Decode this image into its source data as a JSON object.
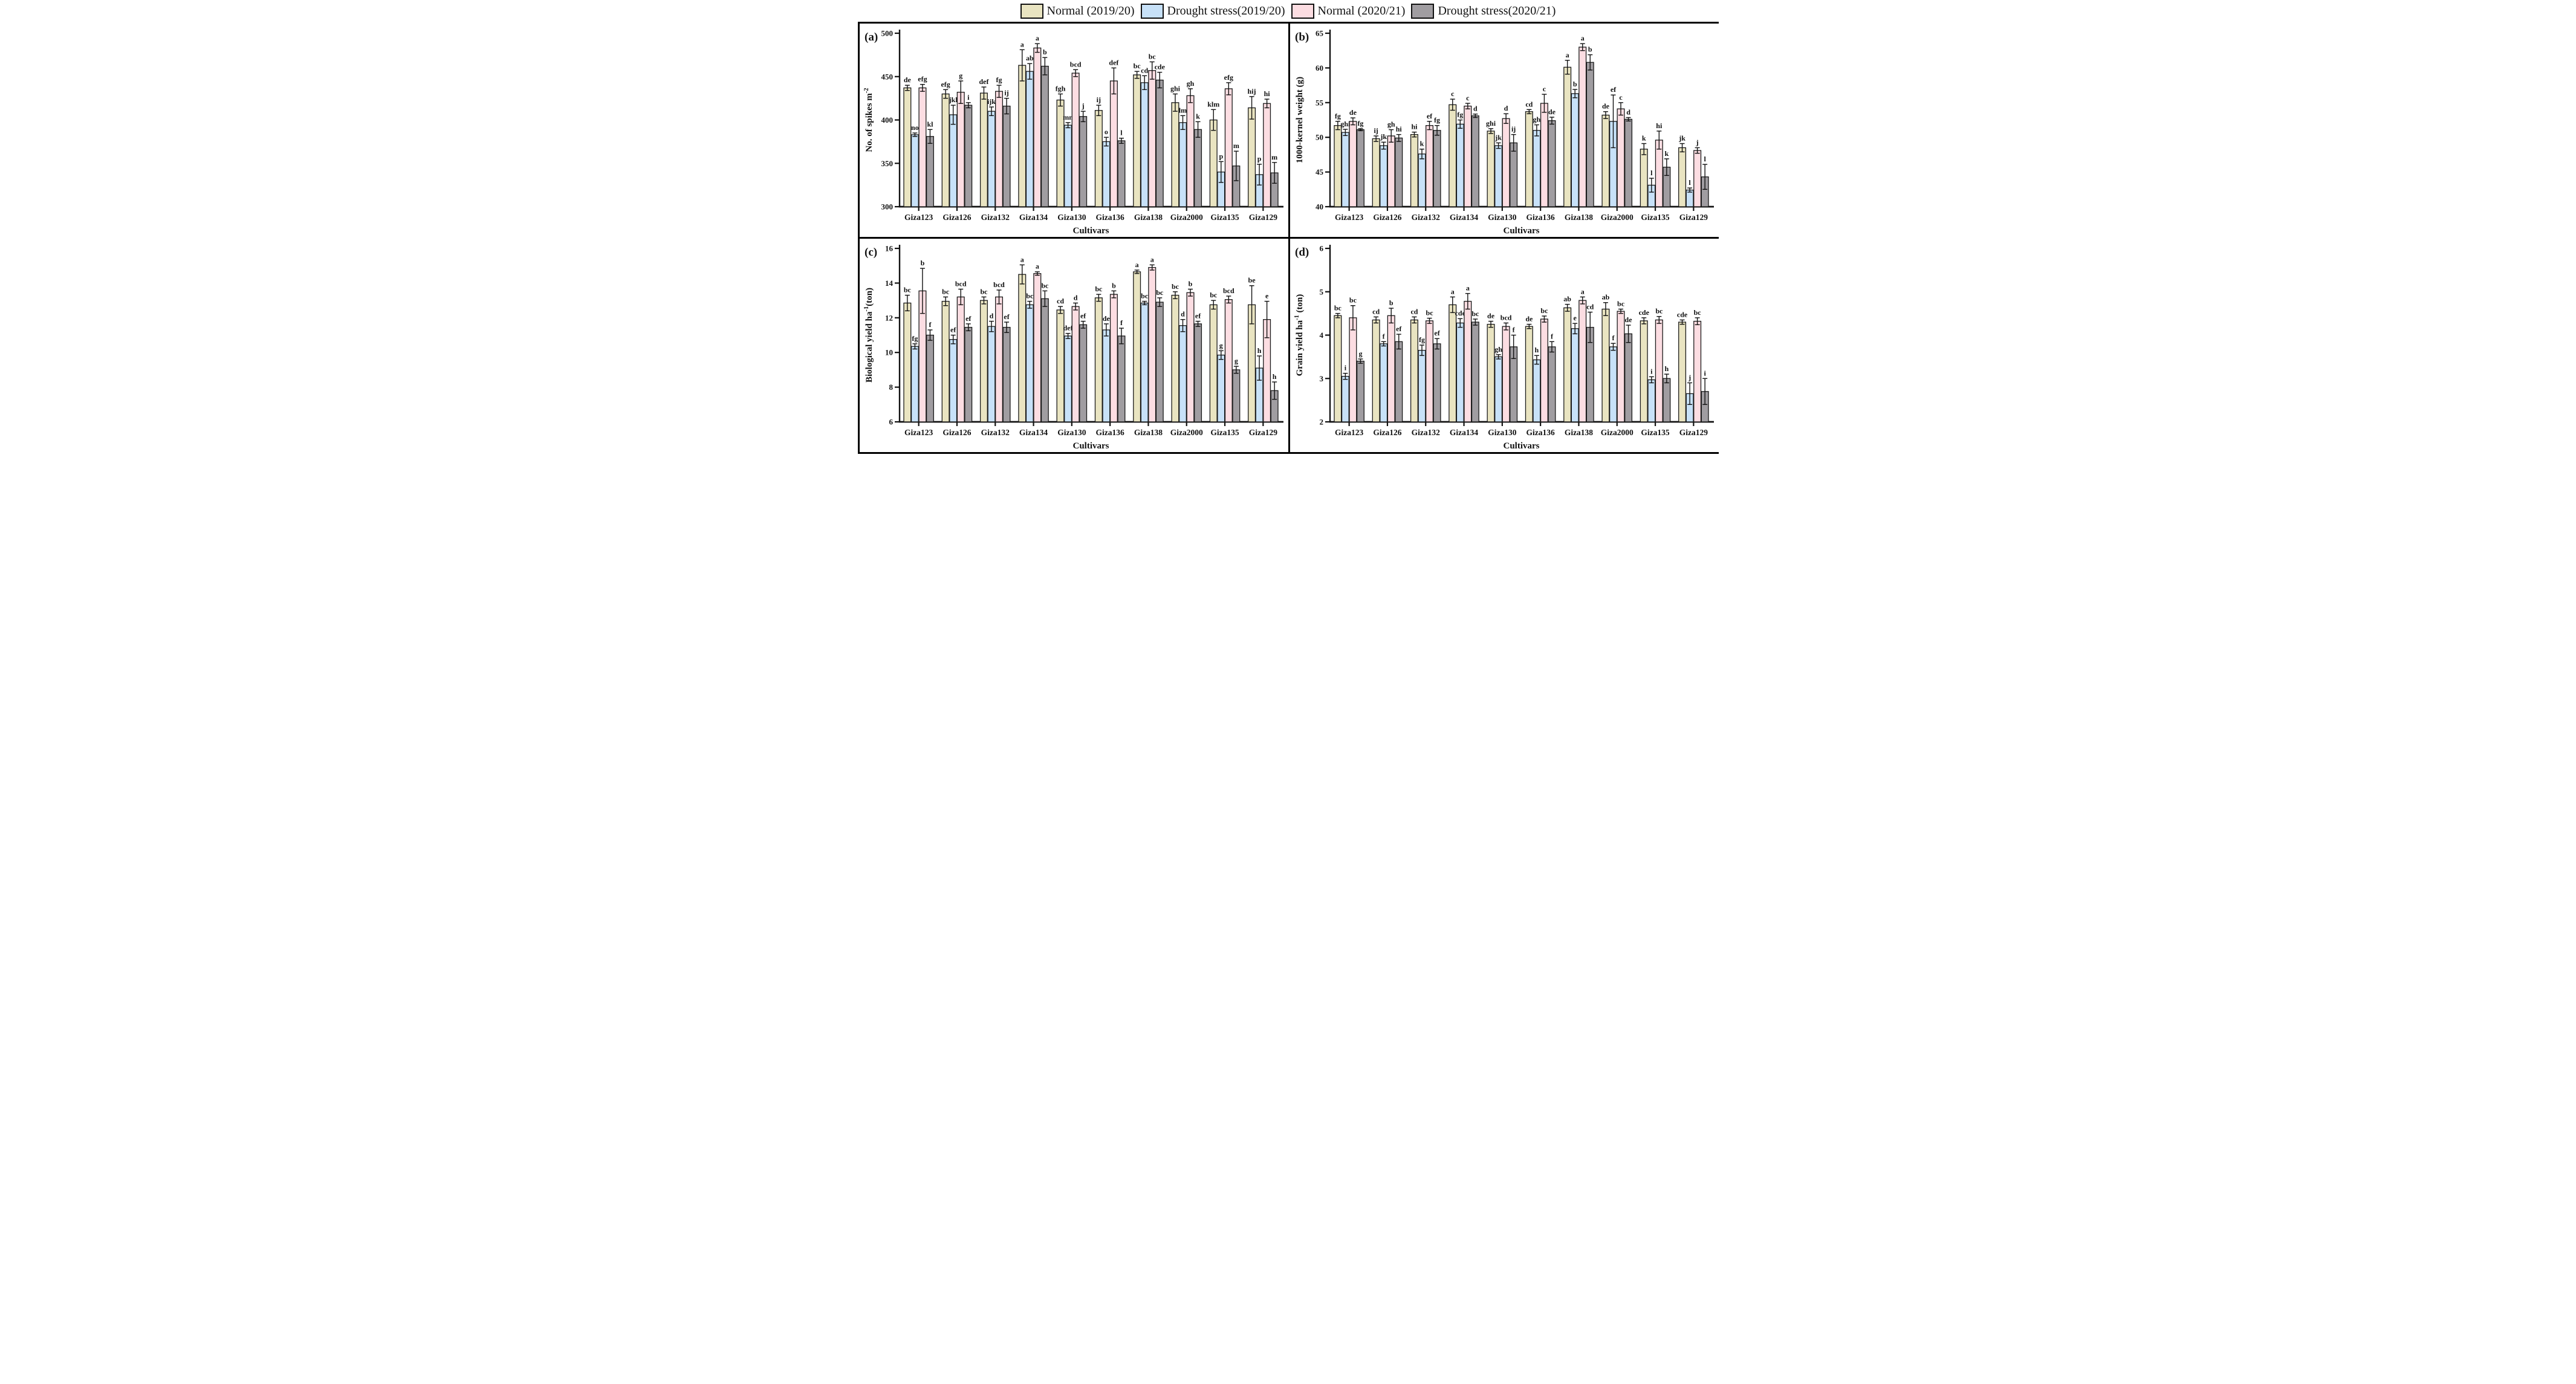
{
  "legend": {
    "items": [
      {
        "label": "Normal (2019/20)",
        "color": "#e9e4c1"
      },
      {
        "label": "Drought stress(2019/20)",
        "color": "#c7e1f8"
      },
      {
        "label": "Normal (2020/21)",
        "color": "#fcdde2"
      },
      {
        "label": "Drought stress(2020/21)",
        "color": "#a09da1"
      }
    ]
  },
  "chart_data": [
    {
      "type": "bar",
      "panel_tag": "(a)",
      "title": "",
      "xlabel": "Cultivars",
      "ylabel_parts": [
        {
          "t": "No. of spikes m"
        },
        {
          "t": "-2",
          "sup": true
        }
      ],
      "ylim": [
        300,
        500
      ],
      "yticks": [
        300,
        350,
        400,
        450,
        500
      ],
      "grid": false,
      "categories": [
        "Giza123",
        "Giza126",
        "Giza132",
        "Giza134",
        "Giza130",
        "Giza136",
        "Giza138",
        "Giza2000",
        "Giza135",
        "Giza129"
      ],
      "series": [
        {
          "name": "Normal (2019/20)",
          "color": "#e9e4c1",
          "values": [
            437,
            430,
            431,
            463,
            423,
            411,
            452,
            420,
            400,
            414
          ],
          "errors": [
            3,
            5,
            7,
            18,
            7,
            6,
            4,
            10,
            12,
            13
          ],
          "letters": [
            "de",
            "efg",
            "def",
            "a",
            "fgh",
            "ij",
            "bc",
            "ghi",
            "klm",
            "hij"
          ]
        },
        {
          "name": "Drought stress(2019/20)",
          "color": "#c7e1f8",
          "values": [
            383,
            406,
            410,
            456,
            394,
            375,
            443,
            397,
            340,
            337
          ],
          "errors": [
            2,
            11,
            5,
            9,
            3,
            5,
            8,
            8,
            12,
            12
          ],
          "letters": [
            "no",
            "jkl",
            "ijk",
            "ab",
            "mn",
            "o",
            "cd",
            "lm",
            "p",
            "p"
          ]
        },
        {
          "name": "Normal (2020/21)",
          "color": "#fcdde2",
          "values": [
            437,
            432,
            433,
            483,
            454,
            445,
            457,
            428,
            436,
            419
          ],
          "errors": [
            4,
            13,
            7,
            5,
            4,
            15,
            10,
            8,
            7,
            5
          ],
          "letters": [
            "efg",
            "g",
            "fg",
            "a",
            "bcd",
            "def",
            "bc",
            "gh",
            "efg",
            "hi"
          ]
        },
        {
          "name": "Drought stress(2020/21)",
          "color": "#a09da1",
          "values": [
            381,
            417,
            416,
            462,
            404,
            376,
            446,
            389,
            347,
            339
          ],
          "errors": [
            8,
            3,
            9,
            10,
            6,
            3,
            9,
            9,
            17,
            12
          ],
          "letters": [
            "kl",
            "i",
            "ij",
            "b",
            "j",
            "l",
            "cde",
            "k",
            "m",
            "m"
          ]
        }
      ]
    },
    {
      "type": "bar",
      "panel_tag": "(b)",
      "title": "",
      "xlabel": "Cultivars",
      "ylabel_parts": [
        {
          "t": "1000-kernel weight (g)"
        }
      ],
      "ylim": [
        40,
        65
      ],
      "yticks": [
        40,
        45,
        50,
        55,
        60,
        65
      ],
      "grid": false,
      "categories": [
        "Giza123",
        "Giza126",
        "Giza132",
        "Giza134",
        "Giza130",
        "Giza136",
        "Giza138",
        "Giza2000",
        "Giza135",
        "Giza129"
      ],
      "series": [
        {
          "name": "Normal (2019/20)",
          "color": "#e9e4c1",
          "values": [
            51.7,
            49.8,
            50.4,
            54.7,
            50.9,
            53.7,
            60.1,
            53.2,
            48.3,
            48.5
          ],
          "errors": [
            0.6,
            0.4,
            0.35,
            0.8,
            0.35,
            0.3,
            1.0,
            0.5,
            0.8,
            0.6
          ],
          "letters": [
            "fg",
            "ij",
            "hi",
            "c",
            "ghi",
            "cd",
            "a",
            "de",
            "k",
            "jk"
          ]
        },
        {
          "name": "Drought stress(2019/20)",
          "color": "#c7e1f8",
          "values": [
            50.7,
            48.8,
            47.6,
            51.9,
            48.8,
            51.0,
            56.3,
            52.3,
            43.1,
            42.4
          ],
          "errors": [
            0.45,
            0.5,
            0.7,
            0.6,
            0.4,
            0.8,
            0.6,
            3.8,
            1.0,
            0.3
          ],
          "letters": [
            "ghi",
            "jk",
            "k",
            "fg",
            "jk",
            "gh",
            "b",
            "ef",
            "l",
            "l"
          ]
        },
        {
          "name": "Normal (2020/21)",
          "color": "#fcdde2",
          "values": [
            52.3,
            50.2,
            51.7,
            54.5,
            52.7,
            54.9,
            63.0,
            54.1,
            49.6,
            48.1
          ],
          "errors": [
            0.5,
            0.9,
            0.6,
            0.4,
            0.7,
            1.3,
            0.5,
            0.9,
            1.3,
            0.4
          ],
          "letters": [
            "de",
            "gh",
            "ef",
            "c",
            "d",
            "c",
            "a",
            "c",
            "hi",
            "j"
          ]
        },
        {
          "name": "Drought stress(2020/21)",
          "color": "#a09da1",
          "values": [
            51.1,
            49.9,
            51.0,
            53.1,
            49.2,
            52.4,
            60.8,
            52.6,
            45.7,
            44.3
          ],
          "errors": [
            0.15,
            0.5,
            0.7,
            0.25,
            1.2,
            0.5,
            1.1,
            0.25,
            1.2,
            1.8
          ],
          "letters": [
            "fg",
            "hi",
            "fg",
            "d",
            "ij",
            "de",
            "b",
            "d",
            "k",
            "l"
          ]
        }
      ]
    },
    {
      "type": "bar",
      "panel_tag": "(c)",
      "title": "",
      "xlabel": "Cultivars",
      "ylabel_parts": [
        {
          "t": "Biological yield ha"
        },
        {
          "t": "-1",
          "sup": true
        },
        {
          "t": "(ton)"
        }
      ],
      "ylim": [
        6,
        16
      ],
      "yticks": [
        6,
        8,
        10,
        12,
        14,
        16
      ],
      "grid": false,
      "categories": [
        "Giza123",
        "Giza126",
        "Giza132",
        "Giza134",
        "Giza130",
        "Giza136",
        "Giza138",
        "Giza2000",
        "Giza135",
        "Giza129"
      ],
      "series": [
        {
          "name": "Normal (2019/20)",
          "color": "#e9e4c1",
          "values": [
            12.85,
            12.95,
            13.0,
            14.5,
            12.45,
            13.15,
            14.65,
            13.3,
            12.75,
            12.75
          ],
          "errors": [
            0.45,
            0.25,
            0.2,
            0.55,
            0.2,
            0.2,
            0.1,
            0.2,
            0.25,
            1.1
          ],
          "letters": [
            "bc",
            "bc",
            "bc",
            "a",
            "cd",
            "bc",
            "a",
            "bc",
            "bc",
            "be"
          ]
        },
        {
          "name": "Drought stress(2019/20)",
          "color": "#c7e1f8",
          "values": [
            10.35,
            10.75,
            11.5,
            12.75,
            10.95,
            11.3,
            12.85,
            11.55,
            9.85,
            9.1
          ],
          "errors": [
            0.15,
            0.25,
            0.3,
            0.2,
            0.15,
            0.35,
            0.1,
            0.35,
            0.25,
            0.7
          ],
          "letters": [
            "fg",
            "ef",
            "d",
            "bc",
            "def",
            "de",
            "bc",
            "d",
            "g",
            "h"
          ]
        },
        {
          "name": "Normal (2020/21)",
          "color": "#fcdde2",
          "values": [
            13.55,
            13.2,
            13.2,
            14.55,
            12.65,
            13.35,
            14.9,
            13.45,
            13.05,
            11.9
          ],
          "errors": [
            1.3,
            0.45,
            0.4,
            0.1,
            0.2,
            0.2,
            0.15,
            0.2,
            0.2,
            1.05
          ],
          "letters": [
            "b",
            "bcd",
            "bcd",
            "a",
            "d",
            "b",
            "a",
            "b",
            "bcd",
            "e"
          ]
        },
        {
          "name": "Drought stress(2020/21)",
          "color": "#a09da1",
          "values": [
            11.0,
            11.45,
            11.45,
            13.1,
            11.6,
            10.95,
            12.9,
            11.65,
            9.0,
            7.8
          ],
          "errors": [
            0.3,
            0.2,
            0.3,
            0.45,
            0.2,
            0.45,
            0.25,
            0.15,
            0.2,
            0.5
          ],
          "letters": [
            "f",
            "ef",
            "ef",
            "bc",
            "ef",
            "f",
            "bc",
            "ef",
            "g",
            "h"
          ]
        }
      ]
    },
    {
      "type": "bar",
      "panel_tag": "(d)",
      "title": "",
      "xlabel": "Cultivars",
      "ylabel_parts": [
        {
          "t": "Grain yield ha"
        },
        {
          "t": "-1",
          "sup": true
        },
        {
          "t": " (ton)"
        }
      ],
      "ylim": [
        2,
        6
      ],
      "yticks": [
        2,
        3,
        4,
        5,
        6
      ],
      "grid": false,
      "categories": [
        "Giza123",
        "Giza126",
        "Giza132",
        "Giza134",
        "Giza130",
        "Giza136",
        "Giza138",
        "Giza2000",
        "Giza135",
        "Giza129"
      ],
      "series": [
        {
          "name": "Normal (2019/20)",
          "color": "#e9e4c1",
          "values": [
            4.45,
            4.35,
            4.35,
            4.7,
            4.25,
            4.2,
            4.63,
            4.6,
            4.33,
            4.3
          ],
          "errors": [
            0.05,
            0.07,
            0.07,
            0.18,
            0.07,
            0.05,
            0.08,
            0.15,
            0.07,
            0.05
          ],
          "letters": [
            "bc",
            "cd",
            "cd",
            "a",
            "de",
            "de",
            "ab",
            "ab",
            "cde",
            "cde"
          ]
        },
        {
          "name": "Drought stress(2019/20)",
          "color": "#c7e1f8",
          "values": [
            3.05,
            3.8,
            3.65,
            4.28,
            3.5,
            3.43,
            4.15,
            3.73,
            2.97,
            2.65
          ],
          "errors": [
            0.07,
            0.05,
            0.12,
            0.1,
            0.05,
            0.1,
            0.12,
            0.08,
            0.07,
            0.25
          ],
          "letters": [
            "i",
            "f",
            "fg",
            "cde",
            "gh",
            "h",
            "e",
            "f",
            "i",
            "j"
          ]
        },
        {
          "name": "Normal (2020/21)",
          "color": "#fcdde2",
          "values": [
            4.4,
            4.45,
            4.33,
            4.78,
            4.2,
            4.37,
            4.8,
            4.55,
            4.35,
            4.32
          ],
          "errors": [
            0.28,
            0.17,
            0.06,
            0.18,
            0.08,
            0.07,
            0.08,
            0.05,
            0.08,
            0.08
          ],
          "letters": [
            "bc",
            "b",
            "bc",
            "a",
            "bcd",
            "bc",
            "a",
            "bc",
            "bc",
            "bc"
          ]
        },
        {
          "name": "Drought stress(2020/21)",
          "color": "#a09da1",
          "values": [
            3.4,
            3.85,
            3.8,
            4.3,
            3.73,
            3.73,
            4.18,
            4.03,
            3.0,
            2.7
          ],
          "errors": [
            0.05,
            0.17,
            0.12,
            0.07,
            0.27,
            0.12,
            0.35,
            0.2,
            0.1,
            0.3
          ],
          "letters": [
            "g",
            "ef",
            "ef",
            "bc",
            "f",
            "f",
            "cd",
            "de",
            "h",
            "i"
          ]
        }
      ]
    }
  ]
}
